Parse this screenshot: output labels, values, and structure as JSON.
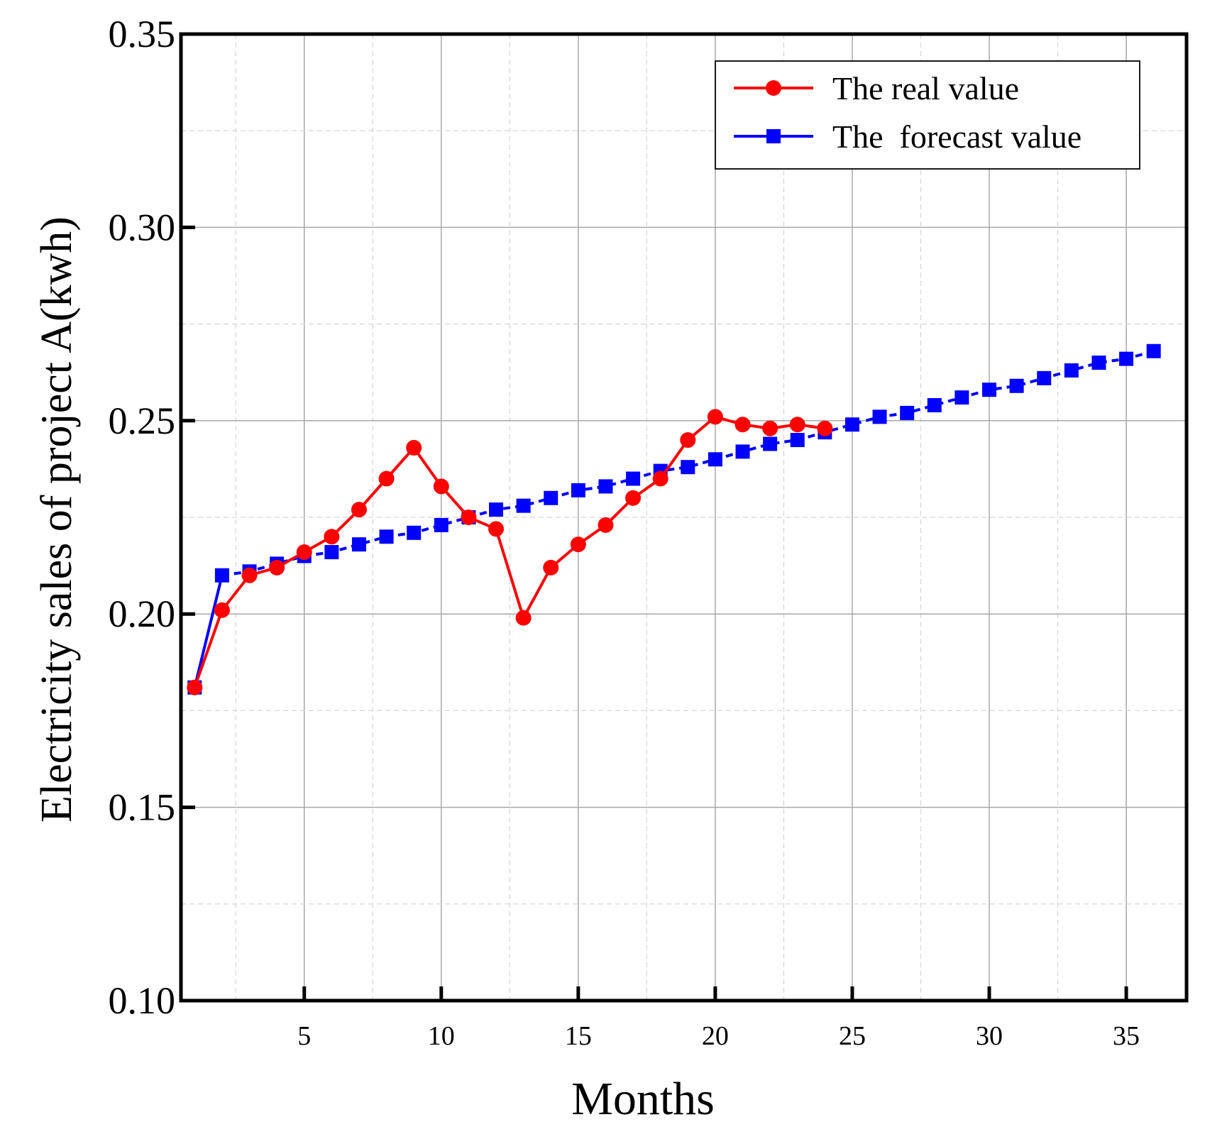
{
  "chart_data": {
    "type": "line",
    "title": "",
    "xlabel": "Months",
    "ylabel": "Electricity sales of project A(kwh)",
    "xlim": [
      0.5,
      37.2
    ],
    "ylim": [
      0.1,
      0.35
    ],
    "xticks": [
      5,
      10,
      15,
      20,
      25,
      30,
      35
    ],
    "yticks": [
      0.1,
      0.15,
      0.2,
      0.25,
      0.3,
      0.35
    ],
    "ytick_labels": [
      "0.10",
      "0.15",
      "0.20",
      "0.25",
      "0.30",
      "0.35"
    ],
    "grid": true,
    "legend_position": "top-right",
    "series": [
      {
        "name": "The real value",
        "color": "#ff0000",
        "marker": "circle",
        "line": "solid",
        "x": [
          1,
          2,
          3,
          4,
          5,
          6,
          7,
          8,
          9,
          10,
          11,
          12,
          13,
          14,
          15,
          16,
          17,
          18,
          19,
          20,
          21,
          22,
          23,
          24
        ],
        "y": [
          0.181,
          0.201,
          0.21,
          0.212,
          0.216,
          0.22,
          0.227,
          0.235,
          0.243,
          0.233,
          0.225,
          0.222,
          0.199,
          0.212,
          0.218,
          0.223,
          0.23,
          0.235,
          0.245,
          0.251,
          0.249,
          0.248,
          0.249,
          0.248
        ]
      },
      {
        "name": "The  forecast value",
        "color": "#0000ff",
        "marker": "square",
        "line": "dashed",
        "x": [
          1,
          2,
          3,
          4,
          5,
          6,
          7,
          8,
          9,
          10,
          11,
          12,
          13,
          14,
          15,
          16,
          17,
          18,
          19,
          20,
          21,
          22,
          23,
          24,
          25,
          26,
          27,
          28,
          29,
          30,
          31,
          32,
          33,
          34,
          35,
          36
        ],
        "y": [
          0.181,
          0.21,
          0.211,
          0.213,
          0.215,
          0.216,
          0.218,
          0.22,
          0.221,
          0.223,
          0.225,
          0.227,
          0.228,
          0.23,
          0.232,
          0.233,
          0.235,
          0.237,
          0.238,
          0.24,
          0.242,
          0.244,
          0.245,
          0.247,
          0.249,
          0.251,
          0.252,
          0.254,
          0.256,
          0.258,
          0.259,
          0.261,
          0.263,
          0.265,
          0.266,
          0.268
        ]
      }
    ]
  }
}
